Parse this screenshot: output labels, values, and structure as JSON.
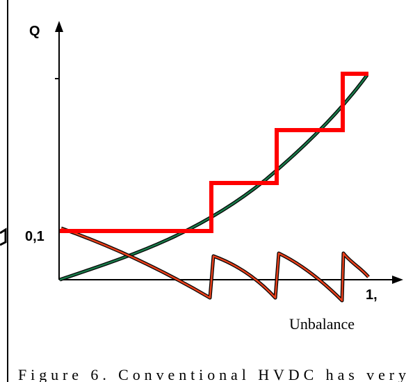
{
  "figure": {
    "y_axis_label": "Q",
    "y_tick_label": "0,1",
    "x_tick_label": "1,",
    "x_axis_caption": "Unbalance",
    "caption": "Figure 6. Conventional HVDC has very"
  },
  "colors": {
    "axis": "#000000",
    "step_curve": "#ff0000",
    "smooth_curve": "#1a7a4a",
    "sawtooth_curve": "#e8401c",
    "outline": "#000000"
  }
}
